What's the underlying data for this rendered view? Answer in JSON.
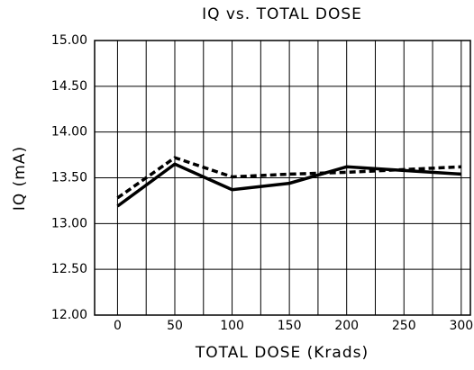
{
  "chart_data": {
    "type": "line",
    "title": "IQ vs. TOTAL DOSE",
    "x_label": "TOTAL DOSE (Krads)",
    "y_label": "IQ (mA)",
    "x": [
      0,
      50,
      100,
      150,
      200,
      250,
      300
    ],
    "series": [
      {
        "color": "#000000",
        "dash": "solid",
        "values": [
          13.19,
          13.65,
          13.37,
          13.44,
          13.62,
          13.58,
          13.54
        ]
      },
      {
        "color": "#000000",
        "dash": "dashed",
        "values": [
          13.28,
          13.72,
          13.51,
          13.54,
          13.56,
          13.59,
          13.62
        ]
      }
    ],
    "xlim": [
      -20,
      308
    ],
    "xticks": [
      0,
      50,
      100,
      150,
      200,
      250,
      300
    ],
    "xminor_ticks": [
      25,
      75,
      125,
      175,
      225,
      275
    ],
    "ylim": [
      12,
      15
    ],
    "yticks": [
      {
        "value": 12,
        "label": "12.00"
      },
      {
        "value": 12.5,
        "label": "12.50"
      },
      {
        "value": 13,
        "label": "13.00"
      },
      {
        "value": 13.5,
        "label": "13.50"
      },
      {
        "value": 14,
        "label": "14.00"
      },
      {
        "value": 14.5,
        "label": "14.50"
      },
      {
        "value": 15,
        "label": "15.00"
      }
    ],
    "grid": true
  }
}
